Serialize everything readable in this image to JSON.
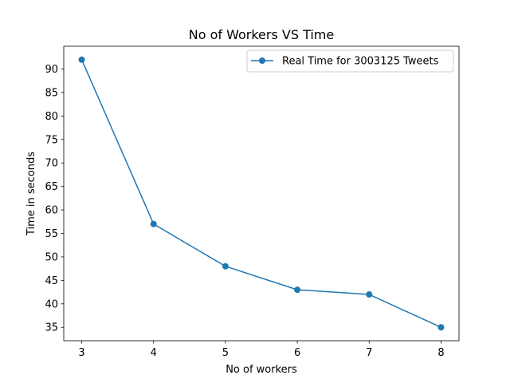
{
  "chart_data": {
    "type": "line",
    "title": "No of Workers VS Time",
    "xlabel": "No of workers",
    "ylabel": "Time in seconds",
    "x": [
      3,
      4,
      5,
      6,
      7,
      8
    ],
    "xlim": [
      2.75,
      8.25
    ],
    "ylim": [
      32.15,
      94.85
    ],
    "xticks": [
      3,
      4,
      5,
      6,
      7,
      8
    ],
    "yticks": [
      35,
      40,
      45,
      50,
      55,
      60,
      65,
      70,
      75,
      80,
      85,
      90
    ],
    "grid": false,
    "legend_position": "top-right",
    "series": [
      {
        "name": "Real Time for 3003125 Tweets",
        "values": [
          92,
          57,
          48,
          43,
          42,
          35
        ],
        "color": "#1f77b4",
        "marker": "circle"
      }
    ]
  }
}
